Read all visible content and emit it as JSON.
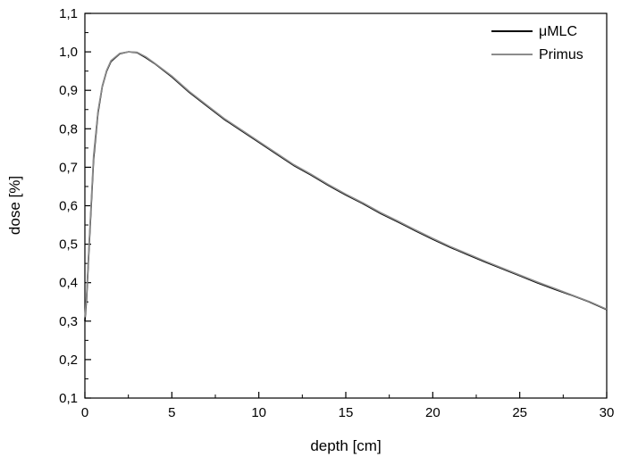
{
  "chart_data": {
    "type": "line",
    "title": "",
    "xlabel": "depth [cm]",
    "ylabel": "dose [%]",
    "xlim": [
      0,
      30
    ],
    "ylim": [
      0.1,
      1.1
    ],
    "grid": false,
    "legend_position": "top-right",
    "x_ticks": [
      {
        "value": 0,
        "label": "0"
      },
      {
        "value": 5,
        "label": "5"
      },
      {
        "value": 10,
        "label": "10"
      },
      {
        "value": 15,
        "label": "15"
      },
      {
        "value": 20,
        "label": "20"
      },
      {
        "value": 25,
        "label": "25"
      },
      {
        "value": 30,
        "label": "30"
      }
    ],
    "y_ticks": [
      {
        "value": 0.1,
        "label": "0,1"
      },
      {
        "value": 0.2,
        "label": "0,2"
      },
      {
        "value": 0.3,
        "label": "0,3"
      },
      {
        "value": 0.4,
        "label": "0,4"
      },
      {
        "value": 0.5,
        "label": "0,5"
      },
      {
        "value": 0.6,
        "label": "0,6"
      },
      {
        "value": 0.7,
        "label": "0,7"
      },
      {
        "value": 0.8,
        "label": "0,8"
      },
      {
        "value": 0.9,
        "label": "0,9"
      },
      {
        "value": 1.0,
        "label": "1,0"
      },
      {
        "value": 1.1,
        "label": "1,1"
      }
    ],
    "series": [
      {
        "name": "μMLC",
        "color": "#000000",
        "x": [
          0,
          0.1,
          0.25,
          0.5,
          0.75,
          1.0,
          1.25,
          1.5,
          2.0,
          2.5,
          3.0,
          3.5,
          4,
          5,
          6,
          7,
          8,
          9,
          10,
          11,
          12,
          13,
          14,
          15,
          16,
          17,
          18,
          19,
          20,
          21,
          22,
          23,
          24,
          25,
          26,
          27,
          28,
          29,
          30
        ],
        "y": [
          0.3,
          0.36,
          0.5,
          0.72,
          0.84,
          0.91,
          0.95,
          0.975,
          0.995,
          1.0,
          0.998,
          0.985,
          0.97,
          0.935,
          0.895,
          0.86,
          0.825,
          0.795,
          0.765,
          0.735,
          0.705,
          0.68,
          0.653,
          0.628,
          0.605,
          0.58,
          0.558,
          0.535,
          0.513,
          0.492,
          0.473,
          0.454,
          0.436,
          0.418,
          0.4,
          0.383,
          0.367,
          0.35,
          0.33
        ]
      },
      {
        "name": "Primus",
        "color": "#8c8c8c",
        "x": [
          0,
          0.1,
          0.25,
          0.5,
          0.75,
          1.0,
          1.25,
          1.5,
          2.0,
          2.5,
          3.0,
          3.5,
          4,
          5,
          6,
          7,
          8,
          9,
          10,
          11,
          12,
          13,
          14,
          15,
          16,
          17,
          18,
          19,
          20,
          21,
          22,
          23,
          24,
          25,
          26,
          27,
          28,
          29,
          30
        ],
        "y": [
          0.31,
          0.37,
          0.51,
          0.73,
          0.845,
          0.912,
          0.952,
          0.977,
          0.996,
          1.0,
          0.999,
          0.987,
          0.971,
          0.937,
          0.897,
          0.862,
          0.827,
          0.797,
          0.767,
          0.737,
          0.707,
          0.682,
          0.655,
          0.63,
          0.607,
          0.582,
          0.56,
          0.537,
          0.515,
          0.494,
          0.475,
          0.456,
          0.438,
          0.42,
          0.402,
          0.385,
          0.368,
          0.351,
          0.331
        ]
      }
    ]
  }
}
